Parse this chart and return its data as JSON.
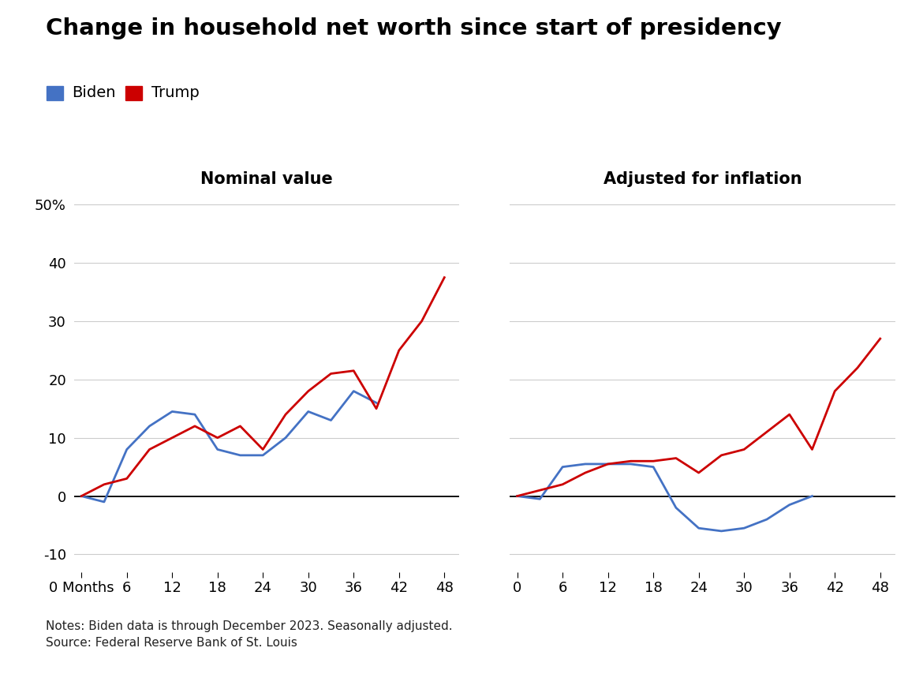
{
  "title": "Change in household net worth since start of presidency",
  "subtitle_left": "Nominal value",
  "subtitle_right": "Adjusted for inflation",
  "legend": [
    "Biden",
    "Trump"
  ],
  "legend_colors": [
    "#4472c4",
    "#cc0000"
  ],
  "notes": "Notes: Biden data is through December 2023. Seasonally adjusted.\nSource: Federal Reserve Bank of St. Louis",
  "background_color": "#ffffff",
  "nominal_x": [
    0,
    3,
    6,
    9,
    12,
    15,
    18,
    21,
    24,
    27,
    30,
    33,
    36,
    39,
    42,
    45,
    48
  ],
  "nominal_biden": [
    0,
    -1,
    8,
    12,
    14.5,
    14,
    8,
    7,
    7,
    10,
    14.5,
    13,
    18,
    16,
    null,
    null,
    null
  ],
  "nominal_trump": [
    0,
    2,
    3,
    8,
    10,
    12,
    10,
    12,
    8,
    14,
    18,
    21,
    21.5,
    15,
    25,
    30,
    37.5
  ],
  "inflation_x": [
    0,
    3,
    6,
    9,
    12,
    15,
    18,
    21,
    24,
    27,
    30,
    33,
    36,
    39,
    42,
    45,
    48
  ],
  "inflation_biden": [
    0,
    -0.5,
    5,
    5.5,
    5.5,
    5.5,
    5,
    -2,
    -5.5,
    -6,
    -5.5,
    -4,
    -1.5,
    0,
    null,
    null,
    null
  ],
  "inflation_trump": [
    0,
    1,
    2,
    4,
    5.5,
    6,
    6,
    6.5,
    4,
    7,
    8,
    11,
    14,
    8,
    18,
    22,
    27
  ],
  "ylim": [
    -13,
    52
  ],
  "yticks": [
    -10,
    0,
    10,
    20,
    30,
    40,
    50
  ],
  "xticks_left": [
    0,
    6,
    12,
    18,
    24,
    30,
    36,
    42,
    48
  ],
  "xticks_right": [
    0,
    6,
    12,
    18,
    24,
    30,
    36,
    42,
    48
  ],
  "grid_color": "#cccccc",
  "line_width": 2.0,
  "title_fontsize": 21,
  "subtitle_fontsize": 15,
  "tick_fontsize": 13,
  "legend_fontsize": 14,
  "note_fontsize": 11
}
